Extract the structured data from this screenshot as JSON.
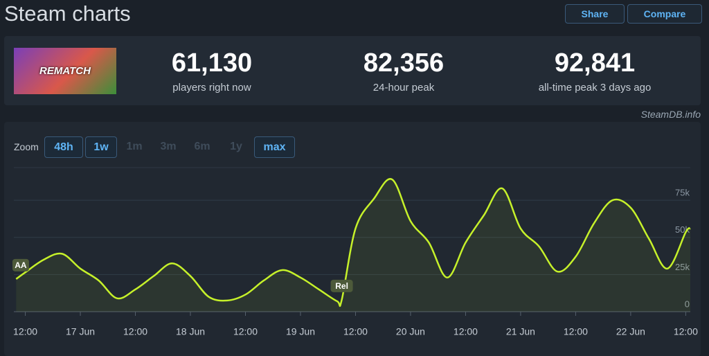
{
  "header": {
    "title": "Steam charts",
    "buttons": [
      "Share",
      "Compare"
    ]
  },
  "game": {
    "name": "REMATCH"
  },
  "stats": [
    {
      "value": "61,130",
      "label": "players right now"
    },
    {
      "value": "82,356",
      "label": "24-hour peak"
    },
    {
      "value": "92,841",
      "label": "all-time peak 3 days ago"
    }
  ],
  "source": "SteamDB.info",
  "zoom": {
    "label": "Zoom",
    "options": [
      "48h",
      "1w",
      "1m",
      "3m",
      "6m",
      "1y",
      "max"
    ],
    "enabled": [
      true,
      true,
      false,
      false,
      false,
      false,
      true
    ]
  },
  "chart_data": {
    "type": "line",
    "color": "#c6f12a",
    "grid": true,
    "x": [
      "16 Jun 10:00",
      "16 Jun 12:00",
      "16 Jun 16:00",
      "16 Jun 20:00",
      "17 Jun 00:00",
      "17 Jun 04:00",
      "17 Jun 08:00",
      "17 Jun 12:00",
      "17 Jun 16:00",
      "17 Jun 20:00",
      "18 Jun 00:00",
      "18 Jun 04:00",
      "18 Jun 08:00",
      "18 Jun 12:00",
      "18 Jun 16:00",
      "18 Jun 20:00",
      "19 Jun 00:00",
      "19 Jun 04:00",
      "19 Jun 08:00",
      "19 Jun 09:00",
      "19 Jun 12:00",
      "19 Jun 16:00",
      "19 Jun 20:00",
      "20 Jun 00:00",
      "20 Jun 04:00",
      "20 Jun 08:00",
      "20 Jun 12:00",
      "20 Jun 16:00",
      "20 Jun 20:00",
      "21 Jun 00:00",
      "21 Jun 04:00",
      "21 Jun 08:00",
      "21 Jun 12:00",
      "21 Jun 16:00",
      "21 Jun 20:00",
      "22 Jun 00:00",
      "22 Jun 04:00",
      "22 Jun 08:00",
      "22 Jun 12:00",
      "22 Jun 13:00"
    ],
    "values": [
      22000,
      26500,
      35000,
      39000,
      29000,
      21000,
      9000,
      15000,
      24000,
      32500,
      24000,
      10000,
      7500,
      11500,
      21000,
      28000,
      23000,
      15000,
      7000,
      8000,
      56000,
      76000,
      89000,
      61000,
      46500,
      23000,
      46500,
      65000,
      83000,
      56000,
      44000,
      27000,
      37000,
      59500,
      75000,
      70000,
      49000,
      29000,
      53500,
      56000
    ],
    "xlim": [
      "16 Jun 09:30",
      "22 Jun 13:00"
    ],
    "xticks": [
      {
        "value": "16 Jun 12:00",
        "label": "12:00"
      },
      {
        "value": "17 Jun 00:00",
        "label": "17 Jun"
      },
      {
        "value": "17 Jun 12:00",
        "label": "12:00"
      },
      {
        "value": "18 Jun 00:00",
        "label": "18 Jun"
      },
      {
        "value": "18 Jun 12:00",
        "label": "12:00"
      },
      {
        "value": "19 Jun 00:00",
        "label": "19 Jun"
      },
      {
        "value": "19 Jun 12:00",
        "label": "12:00"
      },
      {
        "value": "20 Jun 00:00",
        "label": "20 Jun"
      },
      {
        "value": "20 Jun 12:00",
        "label": "12:00"
      },
      {
        "value": "21 Jun 00:00",
        "label": "21 Jun"
      },
      {
        "value": "21 Jun 12:00",
        "label": "12:00"
      },
      {
        "value": "22 Jun 00:00",
        "label": "22 Jun"
      },
      {
        "value": "22 Jun 12:00",
        "label": "12:00"
      }
    ],
    "ylim": [
      0,
      97000
    ],
    "yticks": [
      0,
      {
        "value": 25000,
        "label": "25k"
      },
      {
        "value": 50000,
        "label": "50k"
      },
      {
        "value": 75000,
        "label": "75k"
      }
    ],
    "annotations": [
      {
        "x": "16 Jun 11:00",
        "text": "AA"
      },
      {
        "x": "19 Jun 09:00",
        "text": "Rel"
      }
    ]
  }
}
